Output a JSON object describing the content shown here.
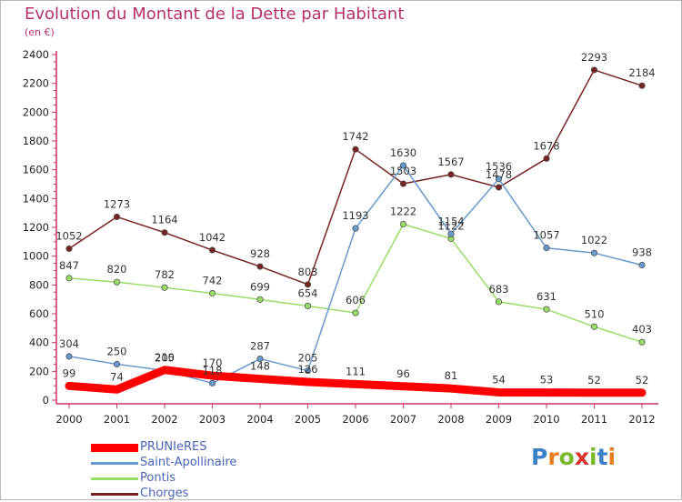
{
  "title": "Evolution du Montant de la Dette par Habitant",
  "subtitle": "(en €)",
  "logo": {
    "letters": [
      "P",
      "r",
      "o",
      "x",
      "i",
      "t",
      "i"
    ],
    "colors": [
      "#3b7fc7",
      "#e87d1e",
      "#7ab82e",
      "#d8322a",
      "#7ab82e",
      "#3b7fc7",
      "#e87d1e"
    ]
  },
  "chart_data": {
    "type": "line",
    "title": "Evolution du Montant de la Dette par Habitant",
    "subtitle": "(en €)",
    "xlabel": "",
    "ylabel": "",
    "x": [
      "2000",
      "2001",
      "2002",
      "2003",
      "2004",
      "2005",
      "2006",
      "2007",
      "2008",
      "2009",
      "2010",
      "2011",
      "2012"
    ],
    "y_ticks": [
      "0",
      "200",
      "400",
      "600",
      "800",
      "1000",
      "1200",
      "1400",
      "1600",
      "1800",
      "2000",
      "2200",
      "2400"
    ],
    "ylim": [
      0,
      2400
    ],
    "grid": false,
    "legend_position": "bottom-left",
    "series": [
      {
        "name": "PRUNIeRES",
        "color": "#ff0000",
        "values": [
          99,
          74,
          210,
          170,
          148,
          126,
          111,
          96,
          81,
          54,
          53,
          52,
          52
        ]
      },
      {
        "name": "Saint-Apollinaire",
        "color": "#6699cc",
        "values": [
          304,
          250,
          205,
          118,
          287,
          205,
          1193,
          1630,
          1154,
          1536,
          1057,
          1022,
          938
        ]
      },
      {
        "name": "Pontis",
        "color": "#99dd66",
        "values": [
          847,
          820,
          782,
          742,
          699,
          654,
          606,
          1222,
          1122,
          683,
          631,
          510,
          403
        ]
      },
      {
        "name": "Chorges",
        "color": "#772222",
        "values": [
          1052,
          1273,
          1164,
          1042,
          928,
          803,
          1742,
          1503,
          1567,
          1478,
          1678,
          2293,
          2184
        ]
      }
    ]
  }
}
